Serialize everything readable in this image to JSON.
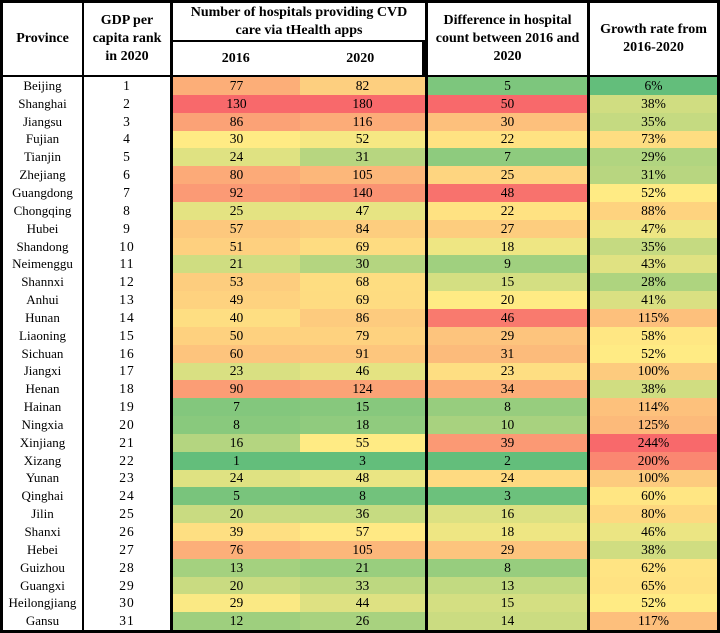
{
  "chart_data": {
    "type": "heatmap-table",
    "title": "",
    "columns": {
      "province": "Province",
      "gdp_rank": "GDP per capita rank in 2020",
      "hospitals_group": "Number of  hospitals providing CVD care via tHealth apps",
      "year_2016": "2016",
      "year_2020": "2020",
      "difference": "Difference in hospital count between 2016 and 2020",
      "growth": "Growth rate from 2016-2020"
    },
    "rows": [
      {
        "province": "Beijing",
        "rank": 1,
        "y2016": 77,
        "y2020": 82,
        "diff": 5,
        "growth_pct": 6
      },
      {
        "province": "Shanghai",
        "rank": 2,
        "y2016": 130,
        "y2020": 180,
        "diff": 50,
        "growth_pct": 38
      },
      {
        "province": "Jiangsu",
        "rank": 3,
        "y2016": 86,
        "y2020": 116,
        "diff": 30,
        "growth_pct": 35
      },
      {
        "province": "Fujian",
        "rank": 4,
        "y2016": 30,
        "y2020": 52,
        "diff": 22,
        "growth_pct": 73
      },
      {
        "province": "Tianjin",
        "rank": 5,
        "y2016": 24,
        "y2020": 31,
        "diff": 7,
        "growth_pct": 29
      },
      {
        "province": "Zhejiang",
        "rank": 6,
        "y2016": 80,
        "y2020": 105,
        "diff": 25,
        "growth_pct": 31
      },
      {
        "province": "Guangdong",
        "rank": 7,
        "y2016": 92,
        "y2020": 140,
        "diff": 48,
        "growth_pct": 52
      },
      {
        "province": "Chongqing",
        "rank": 8,
        "y2016": 25,
        "y2020": 47,
        "diff": 22,
        "growth_pct": 88
      },
      {
        "province": "Hubei",
        "rank": 9,
        "y2016": 57,
        "y2020": 84,
        "diff": 27,
        "growth_pct": 47
      },
      {
        "province": "Shandong",
        "rank": 10,
        "y2016": 51,
        "y2020": 69,
        "diff": 18,
        "growth_pct": 35
      },
      {
        "province": "Neimenggu",
        "rank": 11,
        "y2016": 21,
        "y2020": 30,
        "diff": 9,
        "growth_pct": 43
      },
      {
        "province": "Shannxi",
        "rank": 12,
        "y2016": 53,
        "y2020": 68,
        "diff": 15,
        "growth_pct": 28
      },
      {
        "province": "Anhui",
        "rank": 13,
        "y2016": 49,
        "y2020": 69,
        "diff": 20,
        "growth_pct": 41
      },
      {
        "province": "Hunan",
        "rank": 14,
        "y2016": 40,
        "y2020": 86,
        "diff": 46,
        "growth_pct": 115
      },
      {
        "province": "Liaoning",
        "rank": 15,
        "y2016": 50,
        "y2020": 79,
        "diff": 29,
        "growth_pct": 58
      },
      {
        "province": "Sichuan",
        "rank": 16,
        "y2016": 60,
        "y2020": 91,
        "diff": 31,
        "growth_pct": 52
      },
      {
        "province": "Jiangxi",
        "rank": 17,
        "y2016": 23,
        "y2020": 46,
        "diff": 23,
        "growth_pct": 100
      },
      {
        "province": "Henan",
        "rank": 18,
        "y2016": 90,
        "y2020": 124,
        "diff": 34,
        "growth_pct": 38
      },
      {
        "province": "Hainan",
        "rank": 19,
        "y2016": 7,
        "y2020": 15,
        "diff": 8,
        "growth_pct": 114
      },
      {
        "province": "Ningxia",
        "rank": 20,
        "y2016": 8,
        "y2020": 18,
        "diff": 10,
        "growth_pct": 125
      },
      {
        "province": "Xinjiang",
        "rank": 21,
        "y2016": 16,
        "y2020": 55,
        "diff": 39,
        "growth_pct": 244
      },
      {
        "province": "Xizang",
        "rank": 22,
        "y2016": 1,
        "y2020": 3,
        "diff": 2,
        "growth_pct": 200
      },
      {
        "province": "Yunan",
        "rank": 23,
        "y2016": 24,
        "y2020": 48,
        "diff": 24,
        "growth_pct": 100
      },
      {
        "province": "Qinghai",
        "rank": 24,
        "y2016": 5,
        "y2020": 8,
        "diff": 3,
        "growth_pct": 60
      },
      {
        "province": "Jilin",
        "rank": 25,
        "y2016": 20,
        "y2020": 36,
        "diff": 16,
        "growth_pct": 80
      },
      {
        "province": "Shanxi",
        "rank": 26,
        "y2016": 39,
        "y2020": 57,
        "diff": 18,
        "growth_pct": 46
      },
      {
        "province": "Hebei",
        "rank": 27,
        "y2016": 76,
        "y2020": 105,
        "diff": 29,
        "growth_pct": 38
      },
      {
        "province": "Guizhou",
        "rank": 28,
        "y2016": 13,
        "y2020": 21,
        "diff": 8,
        "growth_pct": 62
      },
      {
        "province": "Guangxi",
        "rank": 29,
        "y2016": 20,
        "y2020": 33,
        "diff": 13,
        "growth_pct": 65
      },
      {
        "province": "Heilongjiang",
        "rank": 30,
        "y2016": 29,
        "y2020": 44,
        "diff": 15,
        "growth_pct": 52
      },
      {
        "province": "Gansu",
        "rank": 31,
        "y2016": 12,
        "y2020": 26,
        "diff": 14,
        "growth_pct": 117
      }
    ],
    "color_scale": {
      "description": "3-color scale applied per numeric column: min=green, median=yellow, max=red",
      "min_color": "#63BE7B",
      "mid_color": "#FFEB84",
      "max_color": "#F8696B"
    },
    "layout": {
      "border_color": "#000000",
      "background_color": "#FFFFFF",
      "text_color": "#000000"
    }
  }
}
